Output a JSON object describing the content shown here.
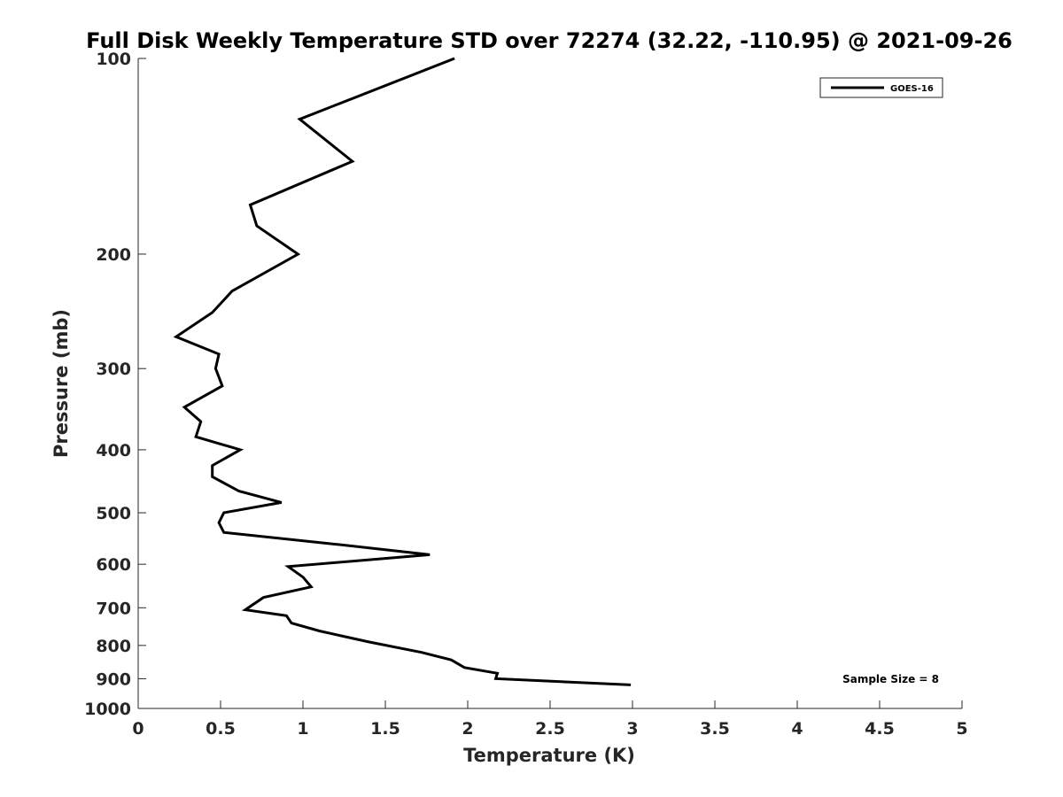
{
  "chart_data": {
    "type": "line",
    "title": "Full Disk Weekly Temperature STD over 72274 (32.22, -110.95) @ 2021-09-26",
    "xlabel": "Temperature (K)",
    "ylabel": "Pressure (mb)",
    "xlim": [
      0,
      5
    ],
    "ylim": [
      1000,
      100
    ],
    "yscale": "log",
    "y_reversed": true,
    "grid": false,
    "legend_position": "top-right",
    "x_ticks": [
      "0",
      "0.5",
      "1",
      "1.5",
      "2",
      "2.5",
      "3",
      "3.5",
      "4",
      "4.5",
      "5"
    ],
    "y_ticks": [
      "100",
      "200",
      "300",
      "400",
      "500",
      "600",
      "700",
      "800",
      "900",
      "1000"
    ],
    "annotation": "Sample Size = 8",
    "line_color": "#000000",
    "series": [
      {
        "name": "GOES-16",
        "points": [
          [
            1.92,
            100
          ],
          [
            0.98,
            124
          ],
          [
            1.3,
            144
          ],
          [
            0.68,
            168
          ],
          [
            0.72,
            181
          ],
          [
            0.97,
            200
          ],
          [
            0.57,
            228
          ],
          [
            0.45,
            246
          ],
          [
            0.23,
            268
          ],
          [
            0.49,
            285
          ],
          [
            0.47,
            300
          ],
          [
            0.51,
            319
          ],
          [
            0.28,
            344
          ],
          [
            0.38,
            362
          ],
          [
            0.35,
            382
          ],
          [
            0.62,
            400
          ],
          [
            0.45,
            423
          ],
          [
            0.45,
            440
          ],
          [
            0.61,
            463
          ],
          [
            0.87,
            482
          ],
          [
            0.52,
            500
          ],
          [
            0.49,
            518
          ],
          [
            0.52,
            536
          ],
          [
            1.2,
            559
          ],
          [
            1.77,
            580
          ],
          [
            0.91,
            605
          ],
          [
            1.0,
            628
          ],
          [
            1.05,
            650
          ],
          [
            0.76,
            675
          ],
          [
            0.65,
            705
          ],
          [
            0.9,
            720
          ],
          [
            0.93,
            739
          ],
          [
            1.1,
            760
          ],
          [
            1.4,
            790
          ],
          [
            1.72,
            820
          ],
          [
            1.9,
            842
          ],
          [
            1.98,
            865
          ],
          [
            2.18,
            883
          ],
          [
            2.17,
            900
          ],
          [
            2.99,
            920
          ]
        ]
      }
    ]
  }
}
